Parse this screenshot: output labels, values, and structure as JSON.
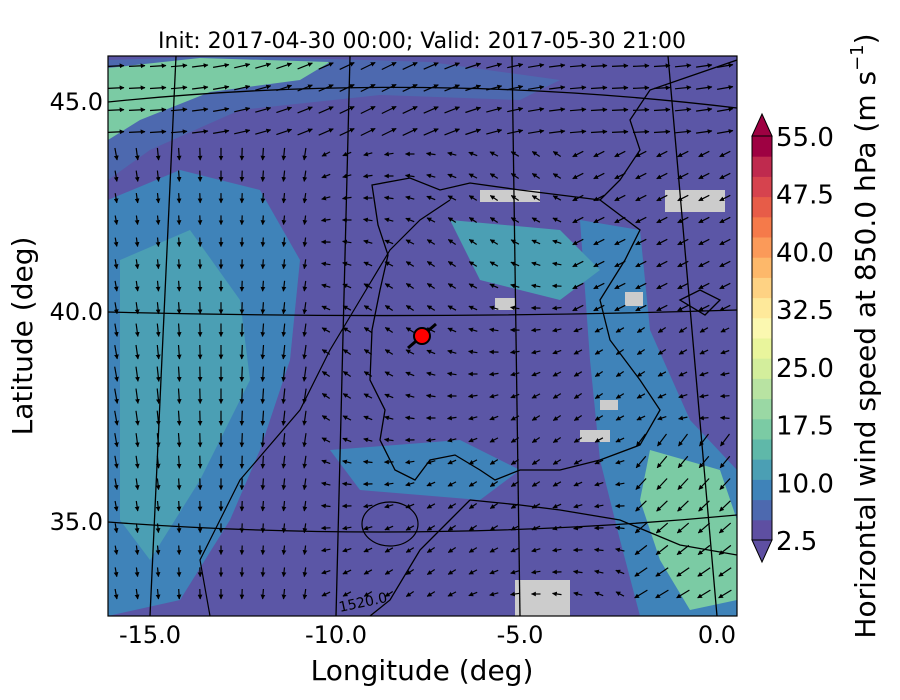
{
  "chart_data": {
    "type": "heatmap",
    "title": "Init: 2017-04-30 00:00; Valid: 2017-05-30 21:00",
    "xlabel": "Longitude (deg)",
    "ylabel": "Latitude (deg)",
    "xlim": [
      -15.9,
      0.2
    ],
    "ylim": [
      32.8,
      46.2
    ],
    "x_ticks": [
      "-15.0",
      "-10.0",
      "-5.0",
      "0.0"
    ],
    "y_ticks": [
      "35.0",
      "40.0",
      "45.0"
    ],
    "colorbar": {
      "label": "Horizontal wind speed at 850.0 hPa (m s",
      "label_sup": "−1",
      "label_end": ")",
      "range": [
        2.5,
        55.0
      ],
      "tick_labels": [
        "2.5",
        "10.0",
        "17.5",
        "25.0",
        "32.5",
        "40.0",
        "47.5",
        "55.0"
      ],
      "extend": "both",
      "colors": [
        "#5e4fa2",
        "#4d69af",
        "#3f83b9",
        "#4b9fb4",
        "#5fb8a9",
        "#7bcba4",
        "#9ad8a4",
        "#b8e3a2",
        "#d3ee9c",
        "#e9f59c",
        "#fbf8b0",
        "#fee99a",
        "#fed283",
        "#fdb86a",
        "#fb9a59",
        "#f57a4a",
        "#e75c48",
        "#d6434e",
        "#bf2a4e",
        "#9e0142"
      ]
    },
    "contour_label": "1520.0",
    "marker": {
      "lon": -7.7,
      "lat": 39.3,
      "color": "#ff0000"
    },
    "background_speed_color": "#5b56a6",
    "missing_color": "#cccccc"
  }
}
